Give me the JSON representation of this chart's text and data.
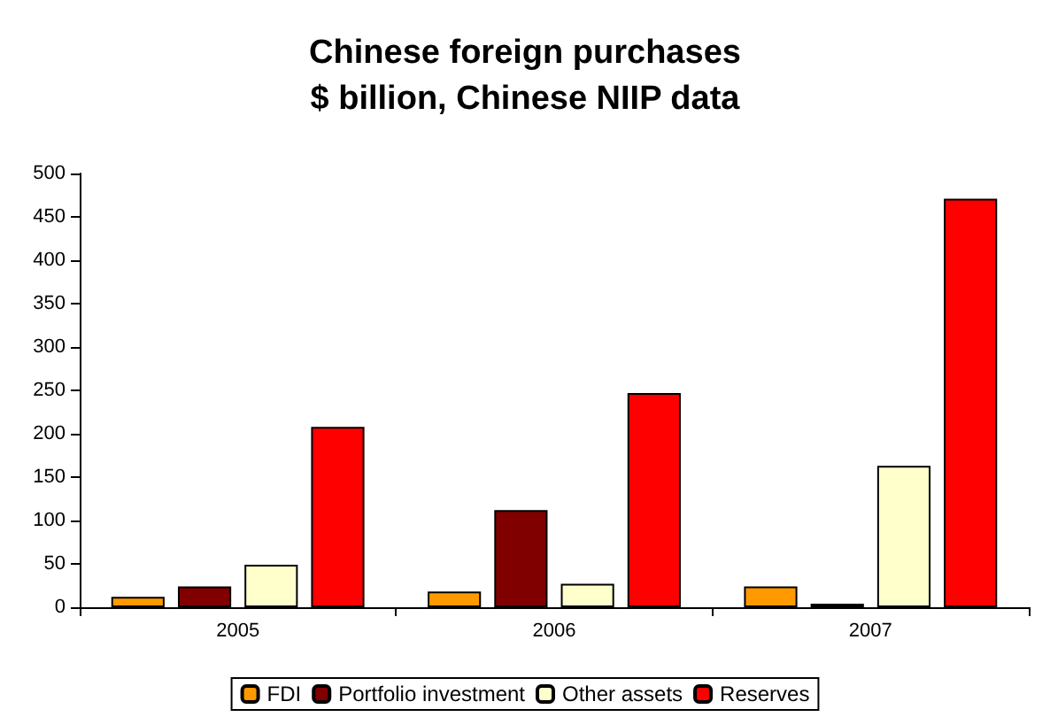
{
  "chart_data": {
    "type": "bar",
    "title": "Chinese foreign purchases\n$ billion, Chinese NIIP data",
    "categories": [
      "2005",
      "2006",
      "2007"
    ],
    "series": [
      {
        "name": "FDI",
        "color": "#ff9900",
        "values": [
          12,
          18,
          24
        ]
      },
      {
        "name": "Portfolio investment",
        "color": "#800000",
        "values": [
          24,
          112,
          4
        ]
      },
      {
        "name": "Other assets",
        "color": "#ffffcc",
        "values": [
          49,
          27,
          163
        ]
      },
      {
        "name": "Reserves",
        "color": "#ff0000",
        "values": [
          208,
          247,
          471
        ]
      }
    ],
    "ylim": [
      0,
      500
    ],
    "yticks": [
      0,
      50,
      100,
      150,
      200,
      250,
      300,
      350,
      400,
      450,
      500
    ],
    "grid": false,
    "legend": "bottom"
  }
}
